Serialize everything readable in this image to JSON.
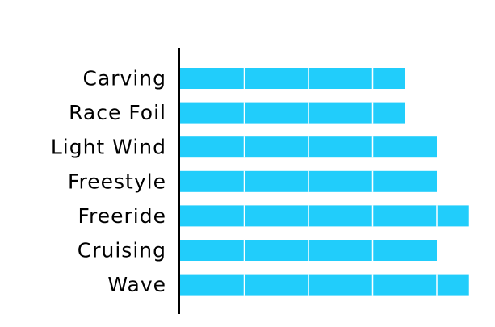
{
  "chart_data": {
    "type": "bar",
    "orientation": "horizontal",
    "categories": [
      "Carving",
      "Race Foil",
      "Light Wind",
      "Freestyle",
      "Freeride",
      "Cruising",
      "Wave"
    ],
    "values": [
      3.5,
      3.5,
      4,
      4,
      4.5,
      4,
      4.5
    ],
    "xlim": [
      0,
      4.5
    ],
    "xticks_visible": false,
    "segment_divider_interval": 1,
    "grid": false,
    "legend": "none",
    "title": "",
    "xlabel": "",
    "ylabel": "",
    "colors": {
      "bar": "#21cdfb",
      "segment_divider": "#ffffff",
      "axis": "#000000",
      "label": "#000000"
    }
  }
}
